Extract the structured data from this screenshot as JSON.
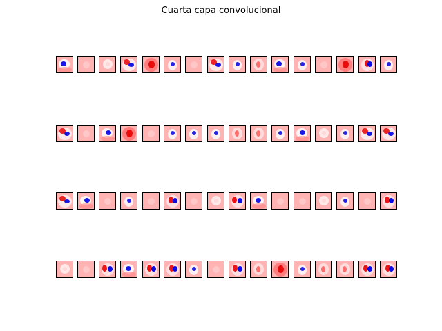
{
  "title": "Cuarta capa convolucional",
  "colors": {
    "background": "#ffffff",
    "base": "#ffb3b3",
    "red": "#e60000",
    "blue": "#0000e6",
    "white": "#ffffff"
  },
  "grid": {
    "rows": 4,
    "cols": 16
  },
  "filters": [
    [
      "bw",
      "pale",
      "w",
      "rbw",
      "rr",
      "wb",
      "pale",
      "rbw",
      "wb",
      "rw",
      "bw",
      "wb",
      "pale",
      "rr",
      "rb",
      "wb"
    ],
    [
      "rbw",
      "pale",
      "bw",
      "rr",
      "pale",
      "wb",
      "wb",
      "wb",
      "rw",
      "rw",
      "wb",
      "bw",
      "w",
      "wb",
      "rbw",
      "rbw"
    ],
    [
      "rbw",
      "bw",
      "pale",
      "wb",
      "pale",
      "rb",
      "pale",
      "w",
      "rb",
      "bw",
      "pale",
      "pale",
      "w",
      "wb",
      "pale",
      "rb"
    ],
    [
      "w",
      "pale",
      "rb",
      "bw",
      "rb",
      "rb",
      "wb",
      "pale",
      "rb",
      "rw",
      "rr",
      "wb",
      "rw",
      "rw",
      "rb",
      "rb"
    ]
  ]
}
